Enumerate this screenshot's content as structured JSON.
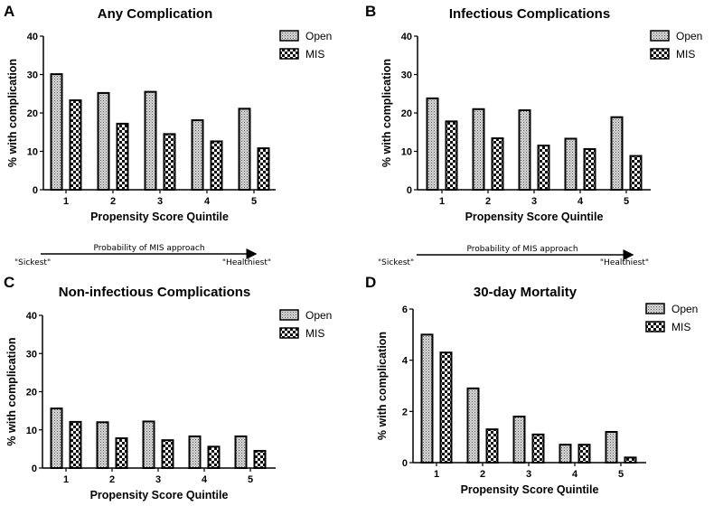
{
  "chart_data": [
    {
      "panel": "A",
      "type": "bar",
      "title": "Any Complication",
      "xlabel": "Propensity Score Quintile",
      "ylabel": "% with complication",
      "categories": [
        "1",
        "2",
        "3",
        "4",
        "5"
      ],
      "ylim": [
        0,
        40
      ],
      "yticks": [
        0,
        10,
        20,
        30,
        40
      ],
      "legend": "top-right",
      "series": [
        {
          "name": "Open",
          "values": [
            30.1,
            25.2,
            25.5,
            18.1,
            21.1
          ]
        },
        {
          "name": "MIS",
          "values": [
            23.3,
            17.2,
            14.5,
            12.6,
            10.8
          ]
        }
      ]
    },
    {
      "panel": "B",
      "type": "bar",
      "title": "Infectious Complications",
      "xlabel": "Propensity Score Quintile",
      "ylabel": "% with complication",
      "categories": [
        "1",
        "2",
        "3",
        "4",
        "5"
      ],
      "ylim": [
        0,
        40
      ],
      "yticks": [
        0,
        10,
        20,
        30,
        40
      ],
      "legend": "top-right",
      "series": [
        {
          "name": "Open",
          "values": [
            23.8,
            21.0,
            20.7,
            13.3,
            18.9
          ]
        },
        {
          "name": "MIS",
          "values": [
            17.8,
            13.4,
            11.5,
            10.6,
            8.8
          ]
        }
      ]
    },
    {
      "panel": "C",
      "type": "bar",
      "title": "Non-infectious Complications",
      "xlabel": "Propensity Score Quintile",
      "ylabel": "% with complication",
      "categories": [
        "1",
        "2",
        "3",
        "4",
        "5"
      ],
      "ylim": [
        0,
        40
      ],
      "yticks": [
        0,
        10,
        20,
        30,
        40
      ],
      "legend": "top-right",
      "series": [
        {
          "name": "Open",
          "values": [
            15.6,
            12.0,
            12.2,
            8.3,
            8.3
          ]
        },
        {
          "name": "MIS",
          "values": [
            12.1,
            7.8,
            7.3,
            5.6,
            4.5
          ]
        }
      ]
    },
    {
      "panel": "D",
      "type": "bar",
      "title": "30-day Mortality",
      "xlabel": "Propensity Score Quintile",
      "ylabel": "% with complication",
      "categories": [
        "1",
        "2",
        "3",
        "4",
        "5"
      ],
      "ylim": [
        0,
        6
      ],
      "yticks": [
        0,
        2,
        4,
        6
      ],
      "legend": "top-right",
      "series": [
        {
          "name": "Open",
          "values": [
            5.0,
            2.9,
            1.8,
            0.7,
            1.2
          ]
        },
        {
          "name": "MIS",
          "values": [
            4.3,
            1.3,
            1.1,
            0.7,
            0.2
          ]
        }
      ]
    }
  ],
  "annotation": {
    "arrow_label": "Probability of  MIS approach",
    "left_label": "\"Sickest\"",
    "right_label": "\"Healthiest\""
  }
}
